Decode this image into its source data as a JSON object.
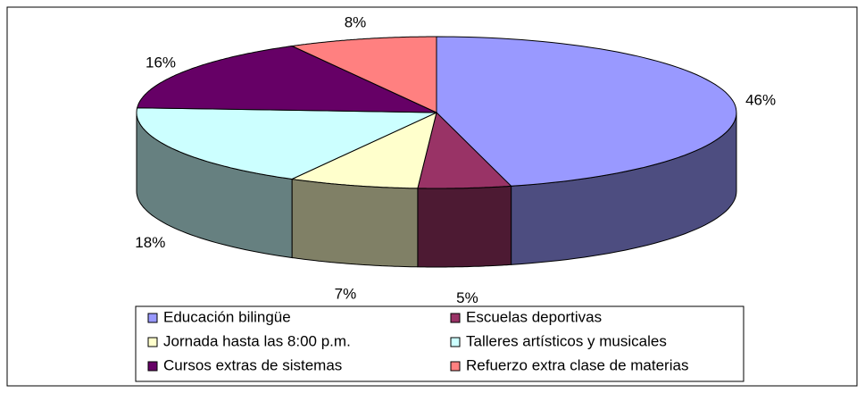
{
  "chart_data": {
    "type": "pie3d",
    "categories": [
      "Educación bilingüe",
      "Escuelas deportivas",
      "Jornada hasta las 8:00 p.m.",
      "Talleres artísticos y musicales",
      "Cursos extras de sistemas",
      "Refuerzo extra clase de materias"
    ],
    "values": [
      46,
      5,
      7,
      18,
      16,
      8
    ],
    "value_labels": [
      "46%",
      "5%",
      "7%",
      "18%",
      "16%",
      "8%"
    ],
    "colors": [
      "#9999ff",
      "#993366",
      "#ffffcc",
      "#ccffff",
      "#660066",
      "#ff8080"
    ],
    "legend": "bottom"
  }
}
